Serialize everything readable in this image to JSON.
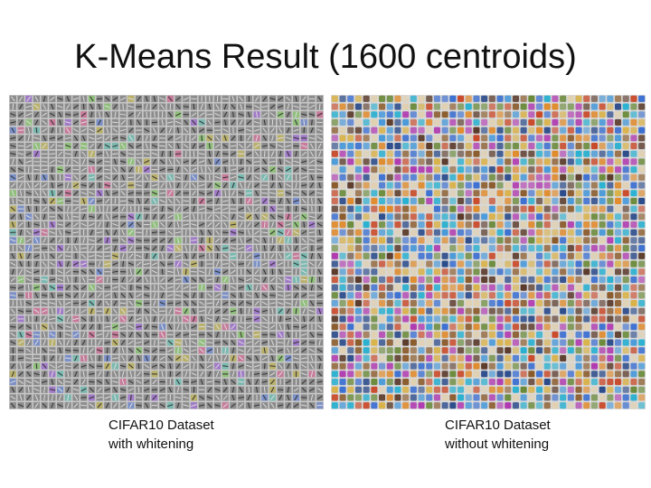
{
  "header": {
    "title": "K-Means Result (1600 centroids)"
  },
  "panels": [
    {
      "caption": [
        "CIFAR10 Dataset",
        "with whitening"
      ]
    },
    {
      "caption": [
        "CIFAR10 Dataset",
        "without whitening"
      ]
    }
  ]
}
